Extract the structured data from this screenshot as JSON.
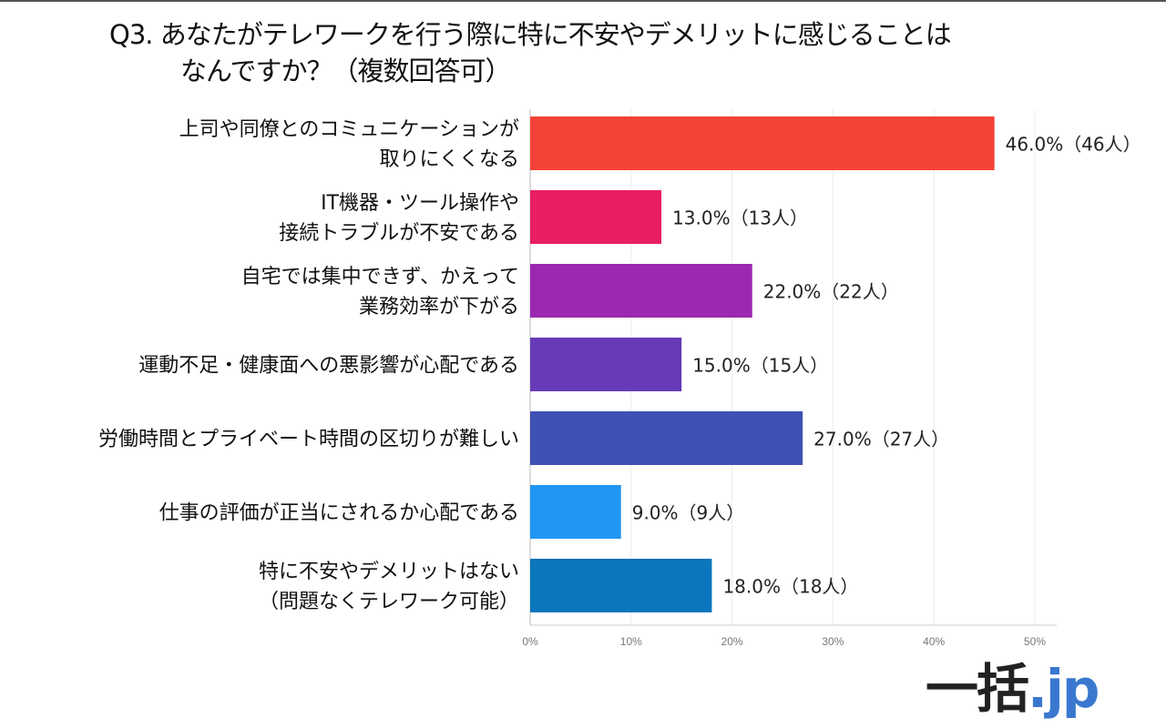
{
  "title": {
    "line1": "Q3. あなたがテレワークを行う際に特に不安やデメリットに感じることは",
    "line2": "なんですか？（複数回答可）"
  },
  "logo": {
    "part1": "一括",
    "part2": ".jp"
  },
  "chart_data": {
    "type": "bar",
    "orientation": "horizontal",
    "title": "Q3. あなたがテレワークを行う際に特に不安やデメリットに感じることはなんですか？（複数回答可）",
    "categories": [
      [
        "上司や同僚とのコミュニケーションが",
        "取りにくくなる"
      ],
      [
        "IT機器・ツール操作や",
        "接続トラブルが不安である"
      ],
      [
        "自宅では集中できず、かえって",
        "業務効率が下がる"
      ],
      [
        "運動不足・健康面への悪影響が心配である"
      ],
      [
        "労働時間とプライベート時間の区切りが難しい"
      ],
      [
        "仕事の評価が正当にされるか心配である"
      ],
      [
        "特に不安やデメリットはない",
        "（問題なくテレワーク可能）"
      ]
    ],
    "values": [
      46,
      13,
      22,
      15,
      27,
      9,
      18
    ],
    "data_labels": [
      "46.0%（46人）",
      "13.0%（13人）",
      "22.0%（22人）",
      "15.0%（15人）",
      "27.0%（27人）",
      "9.0%（9人）",
      "18.0%（18人）"
    ],
    "colors": [
      "#f44336",
      "#e91e63",
      "#9c27b0",
      "#673ab7",
      "#3f51b5",
      "#2196f3",
      "#0a76bd"
    ],
    "xlim": [
      0,
      50
    ],
    "xticks": [
      0,
      10,
      20,
      30,
      40,
      50
    ],
    "xtick_labels": [
      "0%",
      "10%",
      "20%",
      "30%",
      "40%",
      "50%"
    ],
    "xlabel": "",
    "ylabel": "",
    "grid": true
  }
}
